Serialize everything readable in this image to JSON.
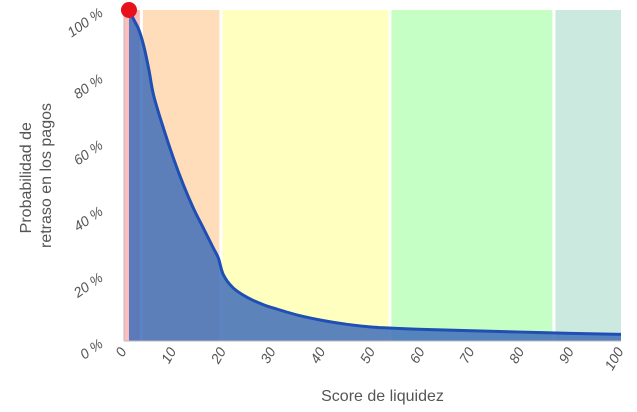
{
  "chart_data": {
    "type": "area",
    "title": "",
    "xlabel": "Score de liquidez",
    "ylabel_lines": [
      "Probabilidad de",
      "retraso en los pagos"
    ],
    "xlim": [
      0,
      100
    ],
    "ylim": [
      0,
      100
    ],
    "x_ticks": [
      0,
      10,
      20,
      30,
      40,
      50,
      60,
      70,
      80,
      90,
      100
    ],
    "x_tick_labels": [
      "0",
      "10",
      "20",
      "30",
      "40",
      "50",
      "60",
      "70",
      "80",
      "90",
      "100"
    ],
    "y_ticks": [
      0,
      20,
      40,
      60,
      80,
      100
    ],
    "y_tick_labels": [
      "0 %",
      "20 %",
      "40 %",
      "60 %",
      "80 %",
      "100 %"
    ],
    "bands": [
      {
        "from": 0,
        "to": 3.5,
        "color": "#FFBEBE"
      },
      {
        "from": 3.5,
        "to": 19.5,
        "color": "#FFDDBB"
      },
      {
        "from": 19.5,
        "to": 53.5,
        "color": "#FFFFBF"
      },
      {
        "from": 53.5,
        "to": 86.5,
        "color": "#C5FFC5"
      },
      {
        "from": 86.5,
        "to": 100,
        "color": "#CCE9E0"
      }
    ],
    "series": [
      {
        "x": [
          1,
          2,
          3,
          4,
          5,
          6,
          8,
          10,
          12,
          14,
          16,
          18,
          19,
          20,
          22,
          25,
          28,
          30,
          35,
          40,
          45,
          50,
          55,
          60,
          70,
          80,
          90,
          100
        ],
        "y": [
          100,
          97,
          94,
          89,
          82,
          74,
          64,
          55,
          47,
          40,
          34,
          28,
          25,
          20,
          16,
          13,
          11,
          10,
          7.8,
          6.2,
          5,
          4.2,
          3.8,
          3.5,
          3.1,
          2.7,
          2.3,
          2
        ],
        "line_color": "#1F4FB4",
        "fill_color": "#3F6EB9"
      }
    ],
    "marker": {
      "x": 1,
      "y": 100,
      "color": "#E8101A"
    },
    "colors": {
      "axis": "#BBBBBB",
      "band_separator": "#FFFFFF"
    }
  }
}
